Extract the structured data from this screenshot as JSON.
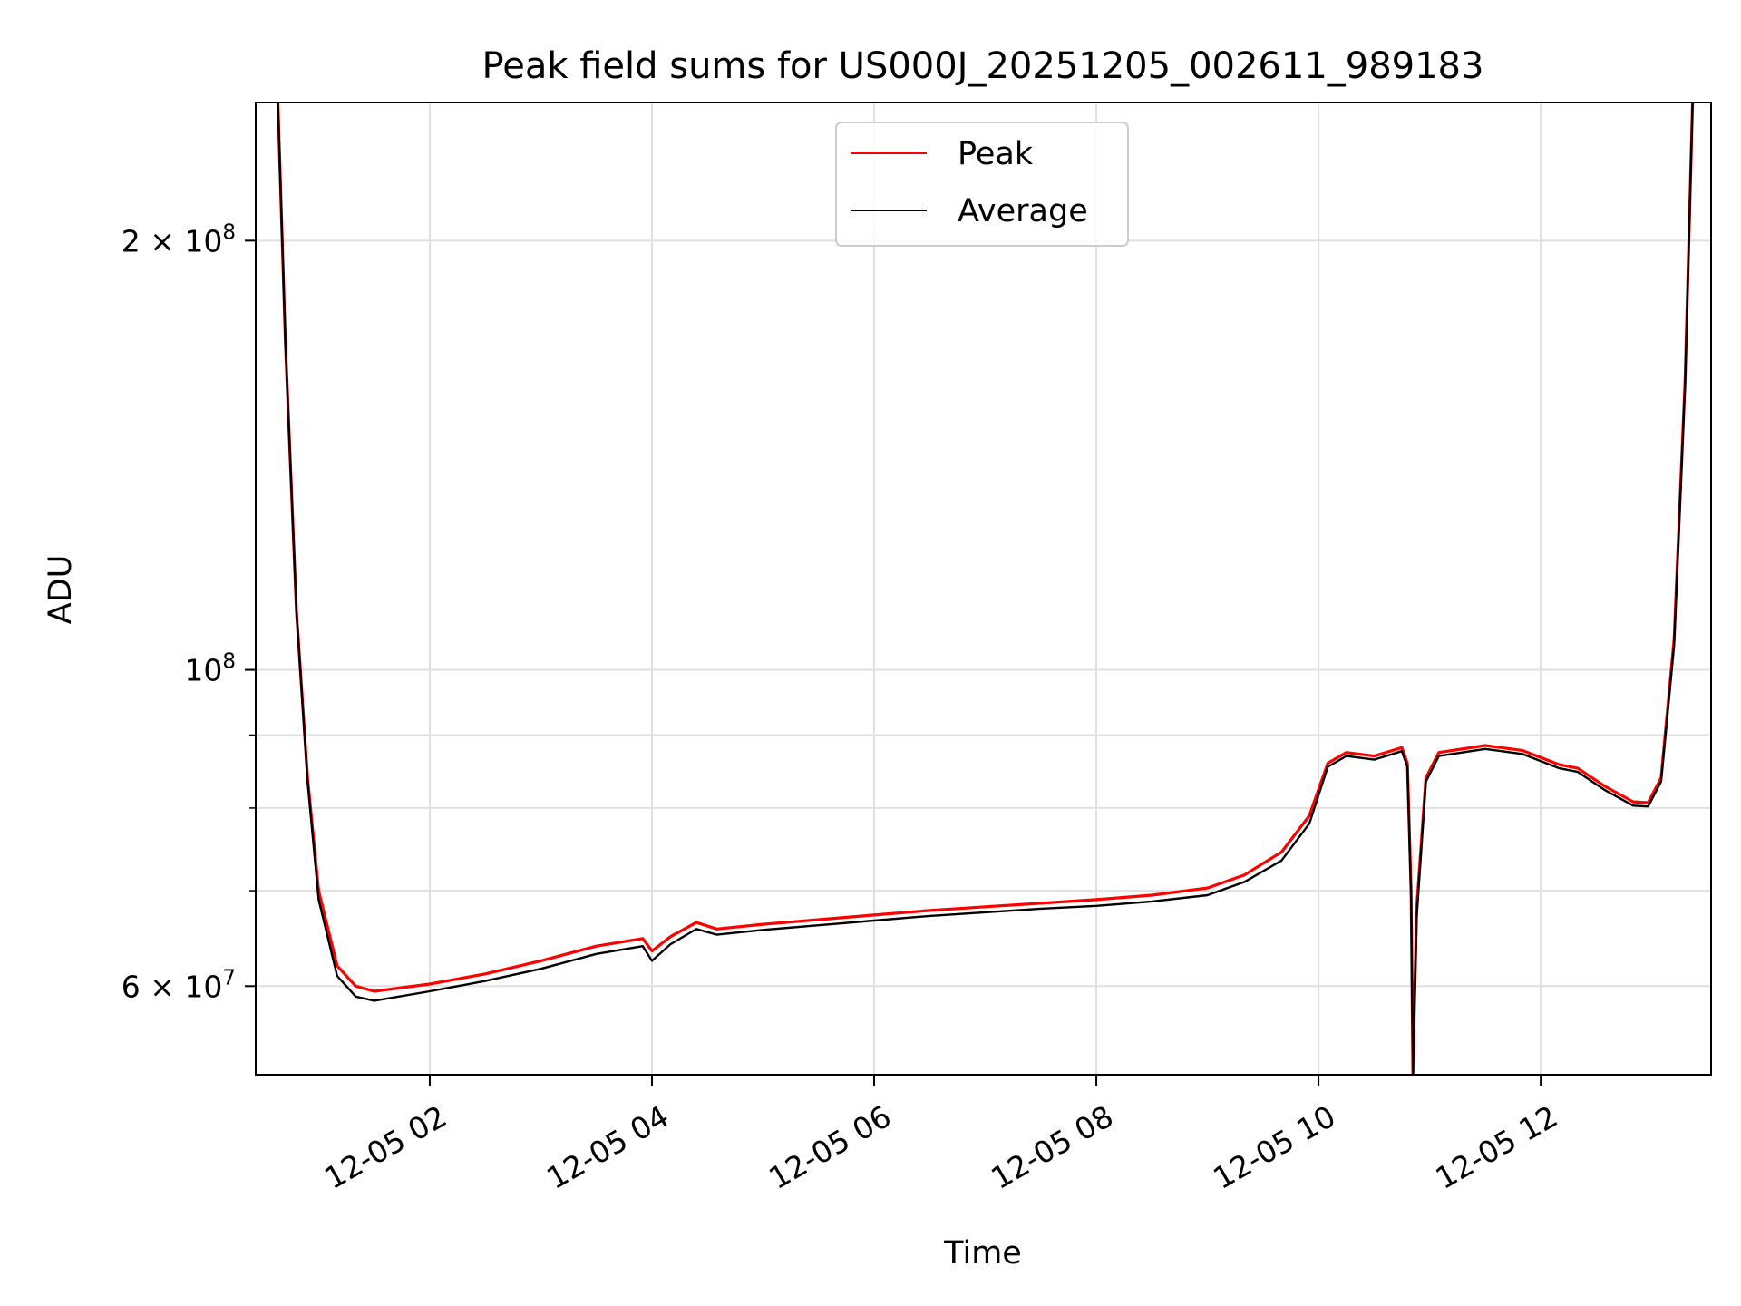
{
  "chart_data": {
    "type": "line",
    "title": "Peak field sums for US000J_20251205_002611_989183",
    "xlabel": "Time",
    "ylabel": "ADU",
    "yscale": "log",
    "ylim": [
      52000000,
      250000000
    ],
    "xlim": [
      "2025-12-05 00:26",
      "2025-12-05 13:32"
    ],
    "grid": true,
    "legend_position": "top-center",
    "x_ticks": [
      {
        "value": "2025-12-05 02:00",
        "label": "12-05 02"
      },
      {
        "value": "2025-12-05 04:00",
        "label": "12-05 04"
      },
      {
        "value": "2025-12-05 06:00",
        "label": "12-05 06"
      },
      {
        "value": "2025-12-05 08:00",
        "label": "12-05 08"
      },
      {
        "value": "2025-12-05 10:00",
        "label": "12-05 10"
      },
      {
        "value": "2025-12-05 12:00",
        "label": "12-05 12"
      }
    ],
    "y_ticks_major": [
      {
        "value": 100000000,
        "base": "10",
        "exp": "8"
      },
      {
        "value": 200000000,
        "mantissa": "2",
        "base": "10",
        "exp": "8"
      },
      {
        "value": 60000000,
        "mantissa": "6",
        "base": "10",
        "exp": "7"
      }
    ],
    "y_ticks_minor": [
      70000000,
      80000000,
      90000000
    ],
    "series": [
      {
        "name": "Peak",
        "color": "#ff0000",
        "points": [
          [
            "2025-12-05 00:38",
            250000000
          ],
          [
            "2025-12-05 00:42",
            170000000
          ],
          [
            "2025-12-05 00:48",
            110000000
          ],
          [
            "2025-12-05 00:54",
            84000000
          ],
          [
            "2025-12-05 01:00",
            70000000
          ],
          [
            "2025-12-05 01:10",
            62000000
          ],
          [
            "2025-12-05 01:20",
            60000000
          ],
          [
            "2025-12-05 01:30",
            59500000
          ],
          [
            "2025-12-05 02:00",
            60200000
          ],
          [
            "2025-12-05 02:30",
            61200000
          ],
          [
            "2025-12-05 03:00",
            62500000
          ],
          [
            "2025-12-05 03:30",
            64000000
          ],
          [
            "2025-12-05 03:55",
            64800000
          ],
          [
            "2025-12-05 04:00",
            63500000
          ],
          [
            "2025-12-05 04:10",
            65000000
          ],
          [
            "2025-12-05 04:24",
            66500000
          ],
          [
            "2025-12-05 04:35",
            65800000
          ],
          [
            "2025-12-05 05:00",
            66300000
          ],
          [
            "2025-12-05 05:30",
            66800000
          ],
          [
            "2025-12-05 06:00",
            67300000
          ],
          [
            "2025-12-05 06:30",
            67800000
          ],
          [
            "2025-12-05 07:00",
            68200000
          ],
          [
            "2025-12-05 07:30",
            68600000
          ],
          [
            "2025-12-05 08:00",
            69000000
          ],
          [
            "2025-12-05 08:30",
            69500000
          ],
          [
            "2025-12-05 09:00",
            70300000
          ],
          [
            "2025-12-05 09:20",
            71800000
          ],
          [
            "2025-12-05 09:40",
            74500000
          ],
          [
            "2025-12-05 09:55",
            79000000
          ],
          [
            "2025-12-05 10:05",
            86000000
          ],
          [
            "2025-12-05 10:15",
            87500000
          ],
          [
            "2025-12-05 10:30",
            87000000
          ],
          [
            "2025-12-05 10:45",
            88200000
          ],
          [
            "2025-12-05 10:48",
            86000000
          ],
          [
            "2025-12-05 10:50",
            70000000
          ],
          [
            "2025-12-05 10:51",
            52000000
          ],
          [
            "2025-12-05 10:53",
            68000000
          ],
          [
            "2025-12-05 10:58",
            84000000
          ],
          [
            "2025-12-05 11:05",
            87500000
          ],
          [
            "2025-12-05 11:30",
            88500000
          ],
          [
            "2025-12-05 11:50",
            87800000
          ],
          [
            "2025-12-05 12:10",
            85800000
          ],
          [
            "2025-12-05 12:20",
            85300000
          ],
          [
            "2025-12-05 12:35",
            82800000
          ],
          [
            "2025-12-05 12:50",
            80800000
          ],
          [
            "2025-12-05 12:58",
            80700000
          ],
          [
            "2025-12-05 13:05",
            84000000
          ],
          [
            "2025-12-05 13:12",
            105000000
          ],
          [
            "2025-12-05 13:18",
            160000000
          ],
          [
            "2025-12-05 13:22",
            250000000
          ]
        ]
      },
      {
        "name": "Average",
        "color": "#000000",
        "points": [
          [
            "2025-12-05 00:38",
            250000000
          ],
          [
            "2025-12-05 00:42",
            170000000
          ],
          [
            "2025-12-05 00:48",
            110000000
          ],
          [
            "2025-12-05 00:54",
            83500000
          ],
          [
            "2025-12-05 01:00",
            69000000
          ],
          [
            "2025-12-05 01:10",
            61000000
          ],
          [
            "2025-12-05 01:20",
            59000000
          ],
          [
            "2025-12-05 01:30",
            58600000
          ],
          [
            "2025-12-05 02:00",
            59500000
          ],
          [
            "2025-12-05 02:30",
            60500000
          ],
          [
            "2025-12-05 03:00",
            61700000
          ],
          [
            "2025-12-05 03:30",
            63200000
          ],
          [
            "2025-12-05 03:55",
            64000000
          ],
          [
            "2025-12-05 04:00",
            62500000
          ],
          [
            "2025-12-05 04:10",
            64200000
          ],
          [
            "2025-12-05 04:24",
            65800000
          ],
          [
            "2025-12-05 04:35",
            65200000
          ],
          [
            "2025-12-05 05:00",
            65700000
          ],
          [
            "2025-12-05 05:30",
            66200000
          ],
          [
            "2025-12-05 06:00",
            66700000
          ],
          [
            "2025-12-05 06:30",
            67200000
          ],
          [
            "2025-12-05 07:00",
            67600000
          ],
          [
            "2025-12-05 07:30",
            68000000
          ],
          [
            "2025-12-05 08:00",
            68300000
          ],
          [
            "2025-12-05 08:30",
            68800000
          ],
          [
            "2025-12-05 09:00",
            69500000
          ],
          [
            "2025-12-05 09:20",
            71000000
          ],
          [
            "2025-12-05 09:40",
            73500000
          ],
          [
            "2025-12-05 09:55",
            78000000
          ],
          [
            "2025-12-05 10:05",
            85500000
          ],
          [
            "2025-12-05 10:15",
            87000000
          ],
          [
            "2025-12-05 10:30",
            86500000
          ],
          [
            "2025-12-05 10:45",
            87700000
          ],
          [
            "2025-12-05 10:48",
            85500000
          ],
          [
            "2025-12-05 10:50",
            69000000
          ],
          [
            "2025-12-05 10:51",
            52000000
          ],
          [
            "2025-12-05 10:53",
            67000000
          ],
          [
            "2025-12-05 10:58",
            83500000
          ],
          [
            "2025-12-05 11:05",
            87000000
          ],
          [
            "2025-12-05 11:30",
            88000000
          ],
          [
            "2025-12-05 11:50",
            87300000
          ],
          [
            "2025-12-05 12:10",
            85300000
          ],
          [
            "2025-12-05 12:20",
            84800000
          ],
          [
            "2025-12-05 12:35",
            82300000
          ],
          [
            "2025-12-05 12:50",
            80300000
          ],
          [
            "2025-12-05 12:58",
            80200000
          ],
          [
            "2025-12-05 13:05",
            83500000
          ],
          [
            "2025-12-05 13:12",
            104000000
          ],
          [
            "2025-12-05 13:18",
            159000000
          ],
          [
            "2025-12-05 13:22",
            250000000
          ]
        ]
      }
    ]
  }
}
